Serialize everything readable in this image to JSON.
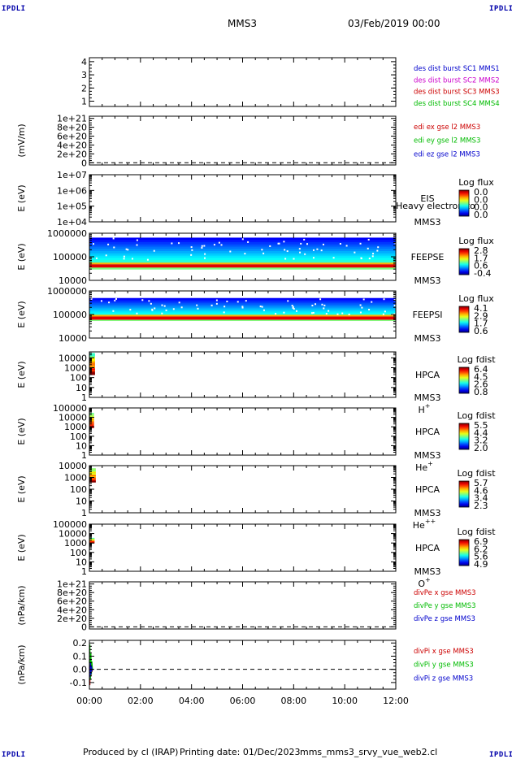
{
  "corners": {
    "top_left": "IPDLI",
    "top_right": "IPDLI",
    "bottom_left": "IPDLI",
    "bottom_right": "IPDLI"
  },
  "header": {
    "spacecraft": "MMS3",
    "date": "03/Feb/2019 00:00"
  },
  "footer": {
    "produced_by": "Produced by cl (IRAP)",
    "printing_date": "Printing date: 01/Dec/2023",
    "file_name": "mms_mms3_srvy_vue_web2.cl"
  },
  "time_axis": {
    "ticks": [
      "00:00",
      "02:00",
      "04:00",
      "06:00",
      "08:00",
      "10:00",
      "12:00"
    ],
    "range_hours": [
      0,
      12
    ]
  },
  "colors": {
    "blue": "#0000cc",
    "magenta": "#cc00cc",
    "red": "#cc0000",
    "green": "#00bb00",
    "corner": "#0000aa"
  },
  "chart_data": [
    {
      "type": "line",
      "ylabel": "",
      "yticks": [
        "1",
        "2",
        "3",
        "4"
      ],
      "ylim": [
        0.6,
        4.3
      ],
      "legend": [
        {
          "text": "des dist burst SC1 MMS1",
          "color": "#0000cc"
        },
        {
          "text": "des dist burst SC2 MMS2",
          "color": "#cc00cc"
        },
        {
          "text": "des dist burst SC3 MMS3",
          "color": "#cc0000"
        },
        {
          "text": "des dist burst SC4 MMS4",
          "color": "#00bb00"
        }
      ],
      "series": []
    },
    {
      "type": "line",
      "ylabel": "(mV/m)",
      "yticks": [
        "0",
        "2e+20",
        "4e+20",
        "6e+20",
        "8e+20",
        "1e+21"
      ],
      "ylim": [
        -5e+19,
        1.05e+21
      ],
      "zero_line": true,
      "legend": [
        {
          "text": "edi ex gse l2 MMS3",
          "color": "#cc0000"
        },
        {
          "text": "edi ey gse l2 MMS3",
          "color": "#00bb00"
        },
        {
          "text": "edi ez gse l2 MMS3",
          "color": "#0000cc"
        }
      ],
      "series": []
    },
    {
      "type": "heatmap",
      "ylabel": "E (eV)",
      "yticks": [
        "1e+04",
        "1e+05",
        "1e+06",
        "1e+07"
      ],
      "ylog": true,
      "ylim": [
        10000,
        10000000
      ],
      "instrument": [
        "EIS",
        "MMS3"
      ],
      "overlay_text": "Heavy electron to",
      "colorbar": {
        "title": "Log flux",
        "ticks": [
          "0.0",
          "0.0",
          "0.0",
          "0.0"
        ]
      },
      "data": "empty"
    },
    {
      "type": "heatmap",
      "ylabel": "E (eV)",
      "yticks": [
        "10000",
        "100000",
        "1000000"
      ],
      "ylog": true,
      "ylim": [
        10000,
        1000000
      ],
      "instrument": [
        "FEEPSE",
        "MMS3"
      ],
      "colorbar": {
        "title": "Log flux",
        "ticks": [
          "2.8",
          "1.7",
          "0.6",
          "-0.4"
        ]
      },
      "coverage_hours": [
        0,
        12
      ],
      "energy_range": [
        30000,
        650000
      ],
      "peak_energy": 35000
    },
    {
      "type": "heatmap",
      "ylabel": "E (eV)",
      "yticks": [
        "10000",
        "100000",
        "1000000"
      ],
      "ylog": true,
      "ylim": [
        10000,
        1000000
      ],
      "instrument": [
        "FEEPSI",
        "MMS3"
      ],
      "colorbar": {
        "title": "Log flux",
        "ticks": [
          "4.1",
          "2.9",
          "1.7",
          "0.6"
        ]
      },
      "coverage_hours": [
        0,
        12
      ],
      "energy_range": [
        55000,
        500000
      ],
      "peak_energy": 60000
    },
    {
      "type": "heatmap",
      "ylabel": "E (eV)",
      "yticks": [
        "1",
        "10",
        "100",
        "1000",
        "10000"
      ],
      "ylog": true,
      "ylim": [
        1,
        40000
      ],
      "instrument": [
        "HPCA",
        "MMS3"
      ],
      "species": "H+",
      "colorbar": {
        "title": "Log fdist",
        "ticks": [
          "6.4",
          "4.5",
          "2.6",
          "0.8"
        ]
      },
      "coverage_hours": [
        0,
        0.22
      ],
      "energy_range": [
        200,
        30000
      ]
    },
    {
      "type": "heatmap",
      "ylabel": "E (eV)",
      "yticks": [
        "1",
        "10",
        "100",
        "1000",
        "10000",
        "100000"
      ],
      "ylog": true,
      "ylim": [
        1,
        100000
      ],
      "instrument": [
        "HPCA",
        "MMS3"
      ],
      "species": "He+",
      "colorbar": {
        "title": "Log fdist",
        "ticks": [
          "5.5",
          "4.4",
          "3.2",
          "2.0"
        ]
      },
      "coverage_hours": [
        0,
        0.18
      ],
      "energy_range": [
        800,
        30000
      ]
    },
    {
      "type": "heatmap",
      "ylabel": "E (eV)",
      "yticks": [
        "1",
        "10",
        "100",
        "1000",
        "10000"
      ],
      "ylog": true,
      "ylim": [
        1,
        10000
      ],
      "instrument": [
        "HPCA",
        "MMS3"
      ],
      "species": "He++",
      "colorbar": {
        "title": "Log fdist",
        "ticks": [
          "5.7",
          "4.6",
          "3.4",
          "2.3"
        ]
      },
      "coverage_hours": [
        0,
        0.25
      ],
      "energy_range": [
        400,
        6000
      ]
    },
    {
      "type": "heatmap",
      "ylabel": "E (eV)",
      "yticks": [
        "1",
        "10",
        "100",
        "1000",
        "10000",
        "100000"
      ],
      "ylog": true,
      "ylim": [
        1,
        100000
      ],
      "instrument": [
        "HPCA",
        "MMS3"
      ],
      "species": "O+",
      "colorbar": {
        "title": "Log fdist",
        "ticks": [
          "6.9",
          "6.2",
          "5.6",
          "4.9"
        ]
      },
      "coverage_hours": [
        0,
        0.2
      ],
      "energy_range": [
        1000,
        3500
      ]
    },
    {
      "type": "line",
      "ylabel": "(nPa/km)",
      "yticks": [
        "0",
        "2e+20",
        "4e+20",
        "6e+20",
        "8e+20",
        "1e+21"
      ],
      "ylim": [
        -5e+19,
        1.05e+21
      ],
      "zero_line": true,
      "legend": [
        {
          "text": "divPe x gse MMS3",
          "color": "#cc0000"
        },
        {
          "text": "divPe y gse MMS3",
          "color": "#00bb00"
        },
        {
          "text": "divPe z gse MMS3",
          "color": "#0000cc"
        }
      ],
      "series": []
    },
    {
      "type": "line",
      "ylabel": "(nPa/km)",
      "yticks": [
        "-0.1",
        "0.0",
        "0.1",
        "0.2"
      ],
      "ylim": [
        -0.15,
        0.22
      ],
      "zero_line": true,
      "legend": [
        {
          "text": "divPi x gse MMS3",
          "color": "#cc0000"
        },
        {
          "text": "divPi y gse MMS3",
          "color": "#00bb00"
        },
        {
          "text": "divPi z gse MMS3",
          "color": "#0000cc"
        }
      ],
      "series": [
        {
          "name": "divPi x gse MMS3",
          "color": "#cc0000",
          "x": [
            0.0,
            0.02,
            0.04,
            0.06,
            0.08,
            0.1,
            0.12
          ],
          "y": [
            0.02,
            -0.12,
            0.09,
            -0.05,
            0.04,
            -0.02,
            0.0
          ]
        },
        {
          "name": "divPi y gse MMS3",
          "color": "#00bb00",
          "x": [
            0.0,
            0.02,
            0.04,
            0.06,
            0.08,
            0.1,
            0.12
          ],
          "y": [
            0.05,
            0.19,
            -0.08,
            0.12,
            -0.04,
            0.06,
            0.0
          ]
        },
        {
          "name": "divPi z gse MMS3",
          "color": "#0000cc",
          "x": [
            0.0,
            0.02,
            0.04,
            0.06,
            0.08,
            0.1,
            0.12
          ],
          "y": [
            0.0,
            -0.06,
            0.05,
            -0.04,
            0.03,
            -0.01,
            0.0
          ]
        }
      ]
    }
  ]
}
